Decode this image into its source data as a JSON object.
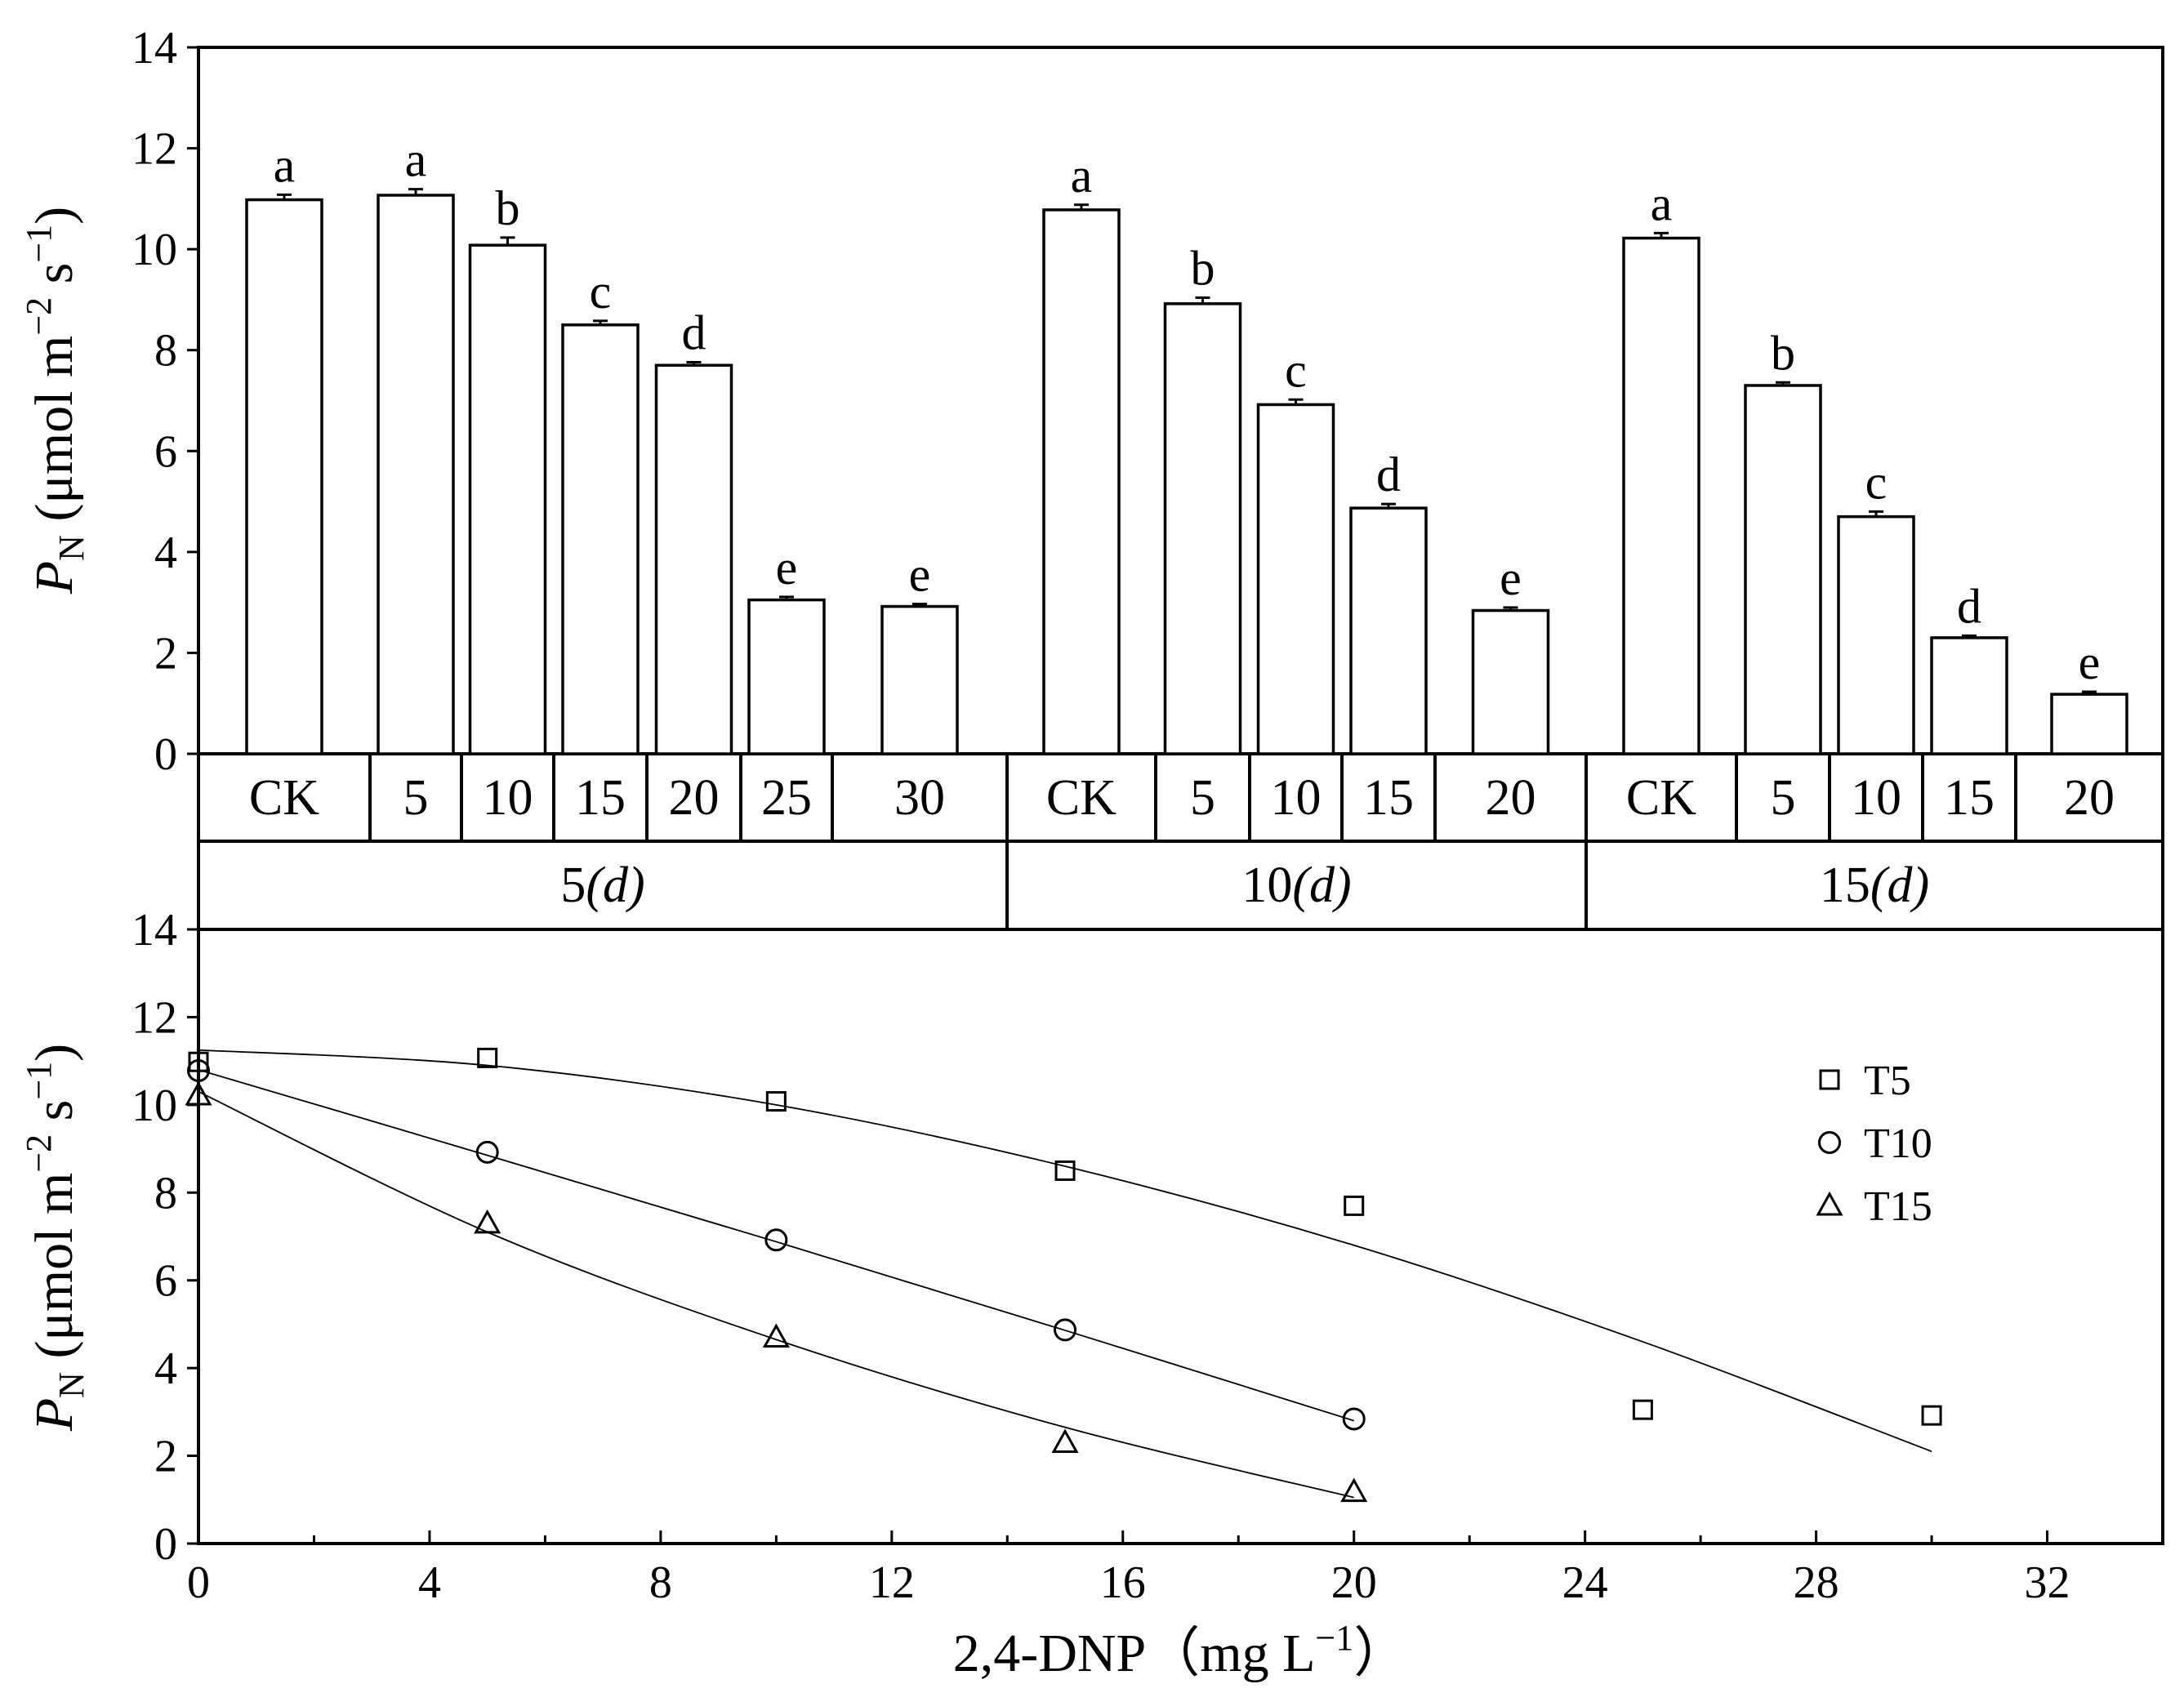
{
  "chart_data": [
    {
      "type": "bar",
      "panel": "top",
      "ylabel": {
        "symbol": "P",
        "sub": "N",
        "units_pre": "(μmol m",
        "exp1": "−2",
        "units_mid": " s",
        "exp2": "−1",
        "units_post": ")"
      },
      "ylim": [
        0,
        14
      ],
      "yticks": [
        "0",
        "2",
        "4",
        "6",
        "8",
        "10",
        "12",
        "14"
      ],
      "groups": [
        {
          "label": "5",
          "unit": "(d)",
          "categories": [
            "CK",
            "5",
            "10",
            "15",
            "20",
            "25",
            "30"
          ],
          "values": [
            10.98,
            11.07,
            10.08,
            8.5,
            7.7,
            3.05,
            2.92
          ],
          "errors": [
            0.1,
            0.12,
            0.15,
            0.08,
            0.06,
            0.06,
            0.05
          ],
          "letters": [
            "a",
            "a",
            "b",
            "c",
            "d",
            "e",
            "e"
          ]
        },
        {
          "label": "10",
          "unit": "(d)",
          "categories": [
            "CK",
            "5",
            "10",
            "15",
            "20"
          ],
          "values": [
            10.78,
            8.92,
            6.92,
            4.87,
            2.84
          ],
          "errors": [
            0.1,
            0.12,
            0.1,
            0.08,
            0.06
          ],
          "letters": [
            "a",
            "b",
            "c",
            "d",
            "e"
          ]
        },
        {
          "label": "15",
          "unit": "(d)",
          "categories": [
            "CK",
            "5",
            "10",
            "15",
            "20"
          ],
          "values": [
            10.22,
            7.3,
            4.7,
            2.3,
            1.18
          ],
          "errors": [
            0.1,
            0.06,
            0.1,
            0.04,
            0.05
          ],
          "letters": [
            "a",
            "b",
            "c",
            "d",
            "e"
          ]
        }
      ]
    },
    {
      "type": "scatter",
      "panel": "bottom",
      "xlabel": {
        "text": "2,4-DNP（mg L",
        "exp": "−1",
        "post": "）"
      },
      "ylabel": {
        "symbol": "P",
        "sub": "N",
        "units_pre": "(μmol m",
        "exp1": "−2",
        "units_mid": " s",
        "exp2": "−1",
        "units_post": ")"
      },
      "xlim": [
        0,
        34
      ],
      "ylim": [
        0,
        14
      ],
      "xticks": [
        "0",
        "4",
        "8",
        "12",
        "16",
        "20",
        "24",
        "28",
        "32"
      ],
      "yticks": [
        "0",
        "2",
        "4",
        "6",
        "8",
        "10",
        "12",
        "14"
      ],
      "series": [
        {
          "name": "T5",
          "marker": "square",
          "x": [
            0,
            5,
            10,
            15,
            20,
            25,
            30
          ],
          "y": [
            10.98,
            11.07,
            10.08,
            8.5,
            7.7,
            3.05,
            2.92
          ],
          "fit": {
            "x": [
              0,
              5,
              10,
              15,
              20,
              25,
              30
            ],
            "y": [
              11.25,
              10.9,
              10.0,
              8.6,
              6.8,
              4.6,
              2.1
            ]
          }
        },
        {
          "name": "T10",
          "marker": "circle",
          "x": [
            0,
            5,
            10,
            15,
            20
          ],
          "y": [
            10.78,
            8.92,
            6.92,
            4.87,
            2.84
          ],
          "fit": {
            "x": [
              0,
              5,
              10,
              15,
              20
            ],
            "y": [
              10.8,
              8.85,
              6.88,
              4.86,
              2.8
            ]
          }
        },
        {
          "name": "T15",
          "marker": "triangle",
          "x": [
            0,
            5,
            10,
            15,
            20
          ],
          "y": [
            10.22,
            7.3,
            4.7,
            2.3,
            1.18
          ],
          "fit": {
            "x": [
              0,
              5,
              10,
              15,
              20
            ],
            "y": [
              10.3,
              7.1,
              4.65,
              2.65,
              1.05
            ]
          }
        }
      ]
    }
  ]
}
